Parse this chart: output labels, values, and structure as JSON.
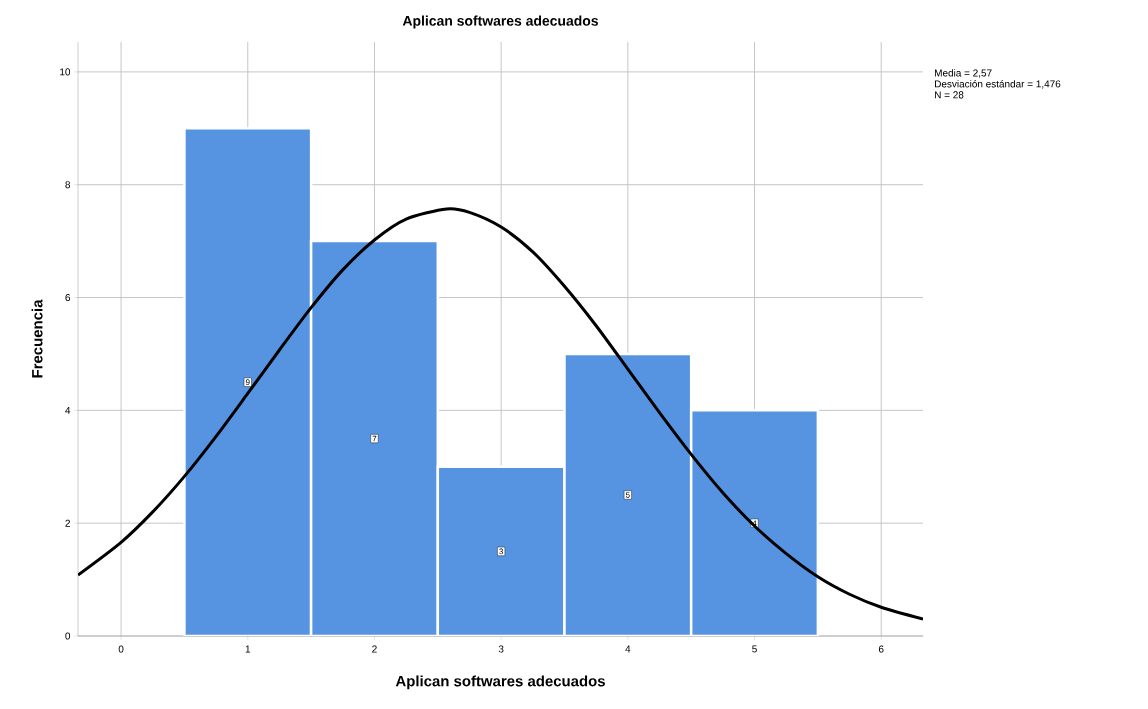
{
  "chart_data": {
    "type": "histogram",
    "title": "Aplican softwares adecuados",
    "xlabel": "Aplican softwares adecuados",
    "ylabel": "Frecuencia",
    "annotations": [
      "Media = 2,57",
      "Desviación estándar = 1,476",
      "N = 28"
    ],
    "series": [
      {
        "bins": [
          0.5,
          1.5,
          2.5,
          3.5,
          4.5,
          5.5
        ],
        "values": [
          9,
          7,
          3,
          5,
          4
        ],
        "value_labels": [
          "9",
          "7",
          "3",
          "5",
          "4"
        ],
        "color": "#5694e2"
      },
      {
        "type": "line",
        "color": "#000000",
        "x": [
          -0.34,
          0,
          0.25,
          0.5,
          0.75,
          1,
          1.25,
          1.5,
          1.75,
          2,
          2.25,
          2.57,
          2.75,
          3,
          3.25,
          3.5,
          3.75,
          4,
          4.25,
          4.5,
          4.75,
          5,
          5.25,
          5.5,
          5.75,
          6,
          6.33
        ],
        "values": [
          1.08,
          1.66,
          2.2,
          2.83,
          3.54,
          4.3,
          5.07,
          5.82,
          6.49,
          7.02,
          7.39,
          7.57,
          7.51,
          7.25,
          6.81,
          6.2,
          5.5,
          4.73,
          3.96,
          3.22,
          2.54,
          1.95,
          1.46,
          1.05,
          0.74,
          0.51,
          0.3
        ]
      }
    ],
    "grid": true,
    "xlim": [
      -0.34,
      6.33
    ],
    "ylim": [
      0,
      10.53
    ],
    "xticks": [
      0,
      1,
      2,
      3,
      4,
      5,
      6
    ],
    "yticks": [
      0,
      2,
      4,
      6,
      8,
      10
    ]
  }
}
